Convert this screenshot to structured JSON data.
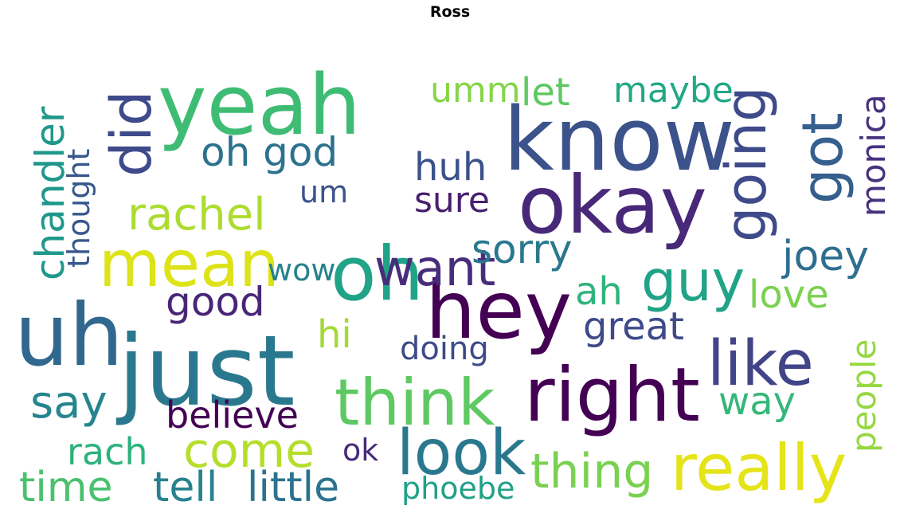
{
  "title": "Ross",
  "words": [
    {
      "text": "know",
      "color": "#3b528b"
    },
    {
      "text": "yeah",
      "color": "#3fbc73"
    },
    {
      "text": "just",
      "color": "#2a788e"
    },
    {
      "text": "uh",
      "color": "#31688e"
    },
    {
      "text": "okay",
      "color": "#482878"
    },
    {
      "text": "hey",
      "color": "#440154"
    },
    {
      "text": "right",
      "color": "#440154"
    },
    {
      "text": "oh",
      "color": "#20a386"
    },
    {
      "text": "mean",
      "color": "#dde318"
    },
    {
      "text": "think",
      "color": "#5ec962"
    },
    {
      "text": "really",
      "color": "#e5e419"
    },
    {
      "text": "like",
      "color": "#414487"
    },
    {
      "text": "look",
      "color": "#2a788e"
    },
    {
      "text": "guy",
      "color": "#20a386"
    },
    {
      "text": "want",
      "color": "#472d7b"
    },
    {
      "text": "did",
      "color": "#3e4a89"
    },
    {
      "text": "got",
      "color": "#355f8d"
    },
    {
      "text": "going",
      "color": "#3e4a89"
    },
    {
      "text": "rachel",
      "color": "#addc30"
    },
    {
      "text": "thing",
      "color": "#7ad151"
    },
    {
      "text": "come",
      "color": "#b5de2b"
    },
    {
      "text": "oh god",
      "color": "#2c728e"
    },
    {
      "text": "joey",
      "color": "#2e6e8e"
    },
    {
      "text": "chandler",
      "color": "#1f988b"
    },
    {
      "text": "say",
      "color": "#25858e"
    },
    {
      "text": "good",
      "color": "#482677"
    },
    {
      "text": "sorry",
      "color": "#2a788e"
    },
    {
      "text": "time",
      "color": "#4ac16d"
    },
    {
      "text": "tell",
      "color": "#26828e"
    },
    {
      "text": "little",
      "color": "#2c738e"
    },
    {
      "text": "believe",
      "color": "#440154"
    },
    {
      "text": "great",
      "color": "#3e4a89"
    },
    {
      "text": "monica",
      "color": "#46327e"
    },
    {
      "text": "maybe",
      "color": "#22a884"
    },
    {
      "text": "huh",
      "color": "#3b528b"
    },
    {
      "text": "let",
      "color": "#5ec962"
    },
    {
      "text": "umm",
      "color": "#86d549"
    },
    {
      "text": "love",
      "color": "#7ad151"
    },
    {
      "text": "ah",
      "color": "#2fb47c"
    },
    {
      "text": "way",
      "color": "#35b779"
    },
    {
      "text": "rach",
      "color": "#2db27d"
    },
    {
      "text": "people",
      "color": "#95d840"
    },
    {
      "text": "hi",
      "color": "#a2da37"
    },
    {
      "text": "sure",
      "color": "#481f70"
    },
    {
      "text": "doing",
      "color": "#3e4a89"
    },
    {
      "text": "phoebe",
      "color": "#1fa188"
    },
    {
      "text": "thought",
      "color": "#38588c"
    },
    {
      "text": "um",
      "color": "#3b528b"
    },
    {
      "text": "wow",
      "color": "#26828e"
    },
    {
      "text": "ok",
      "color": "#472a7a"
    }
  ]
}
